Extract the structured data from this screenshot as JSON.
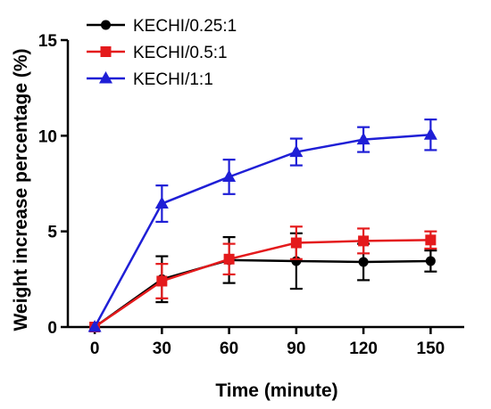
{
  "chart_data": {
    "type": "line",
    "xlabel": "Time (minute)",
    "ylabel": "Weight increase percentage (%)",
    "x": [
      0,
      30,
      60,
      90,
      120,
      150
    ],
    "xticks": [
      0,
      30,
      60,
      90,
      120,
      150
    ],
    "xlim": [
      -12,
      165
    ],
    "yticks": [
      0,
      5,
      10,
      15
    ],
    "ylim": [
      0,
      15
    ],
    "grid": false,
    "legend_position": "top-left",
    "series": [
      {
        "name": "KECHI/0.25:1",
        "color": "#000000",
        "marker": "circle",
        "values": [
          0,
          2.5,
          3.5,
          3.45,
          3.4,
          3.45
        ],
        "error": [
          0,
          1.2,
          1.2,
          1.45,
          0.95,
          0.55
        ]
      },
      {
        "name": "KECHI/0.5:1",
        "color": "#e41a1c",
        "marker": "square",
        "values": [
          0,
          2.4,
          3.55,
          4.4,
          4.5,
          4.55
        ],
        "error": [
          0,
          0.9,
          0.8,
          0.85,
          0.65,
          0.45
        ]
      },
      {
        "name": "KECHI/1:1",
        "color": "#1f1fd6",
        "marker": "triangle",
        "values": [
          0,
          6.45,
          7.85,
          9.15,
          9.8,
          10.05
        ],
        "error": [
          0,
          0.95,
          0.9,
          0.7,
          0.65,
          0.8
        ]
      }
    ]
  }
}
